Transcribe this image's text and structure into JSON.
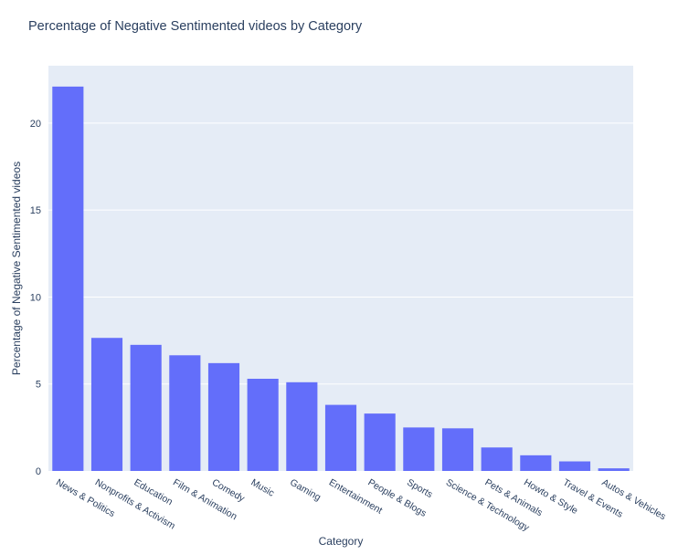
{
  "chart_data": {
    "type": "bar",
    "title": "Percentage of Negative Sentimented videos by Category",
    "xlabel": "Category",
    "ylabel": "Percentage of Negative Sentimented videos",
    "categories": [
      "News & Politics",
      "Nonprofits & Activism",
      "Education",
      "Film & Animation",
      "Comedy",
      "Music",
      "Gaming",
      "Entertainment",
      "People & Blogs",
      "Sports",
      "Science & Technology",
      "Pets & Animals",
      "Howto & Style",
      "Travel & Events",
      "Autos & Vehicles"
    ],
    "values": [
      22.1,
      7.65,
      7.25,
      6.65,
      6.2,
      5.3,
      5.1,
      3.8,
      3.3,
      2.5,
      2.45,
      1.35,
      0.9,
      0.55,
      0.15
    ],
    "ylim": [
      0,
      23.3
    ],
    "yticks": [
      0,
      5,
      10,
      15,
      20
    ],
    "grid": true,
    "colors": {
      "bar": "#636efa",
      "plot_bg": "#e5ecf6",
      "grid": "#ffffff",
      "text": "#2a3f5f"
    }
  }
}
